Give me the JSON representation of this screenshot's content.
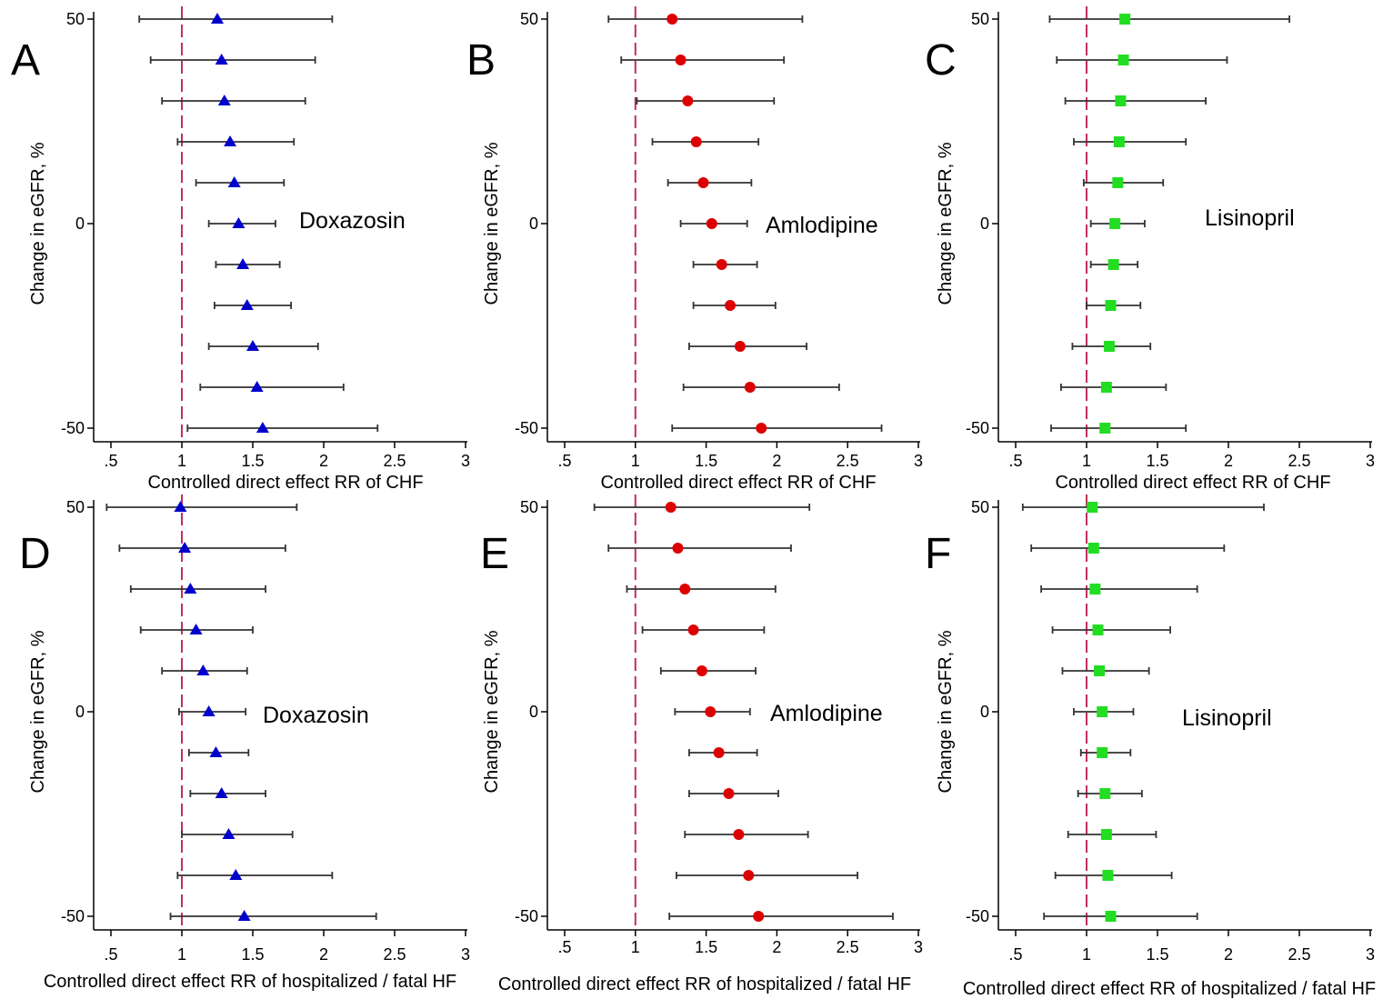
{
  "y_ticks": [
    {
      "value": 50,
      "label": "50"
    },
    {
      "value": 0,
      "label": "0"
    },
    {
      "value": -50,
      "label": "-50"
    }
  ],
  "x_ticks": [
    {
      "value": 0.5,
      "label": ".5"
    },
    {
      "value": 1,
      "label": "1"
    },
    {
      "value": 1.5,
      "label": "1.5"
    },
    {
      "value": 2,
      "label": "2"
    },
    {
      "value": 2.5,
      "label": "2.5"
    },
    {
      "value": 3,
      "label": "3"
    }
  ],
  "colors": {
    "doxazosin": "#0000cc",
    "amlodipine": "#dd0000",
    "lisinopril": "#22dd22",
    "reference_line": "#c0305a",
    "error_bar": "#333333",
    "axis": "#000000"
  },
  "chart_data": [
    {
      "panel": "A",
      "label": "Doxazosin",
      "marker": "triangle",
      "color": "#0000cc",
      "type": "forest",
      "xlabel": "Controlled direct effect RR of CHF",
      "ylabel": "Change in eGFR, %",
      "xlim": [
        0.5,
        3
      ],
      "ylim": [
        -50,
        50
      ],
      "reference_x": 1,
      "points": [
        {
          "y": 50,
          "rr": 1.25,
          "lo": 0.7,
          "hi": 2.06
        },
        {
          "y": 40,
          "rr": 1.28,
          "lo": 0.78,
          "hi": 1.94
        },
        {
          "y": 30,
          "rr": 1.3,
          "lo": 0.86,
          "hi": 1.87
        },
        {
          "y": 20,
          "rr": 1.34,
          "lo": 0.97,
          "hi": 1.79
        },
        {
          "y": 10,
          "rr": 1.37,
          "lo": 1.1,
          "hi": 1.72
        },
        {
          "y": 0,
          "rr": 1.4,
          "lo": 1.19,
          "hi": 1.66
        },
        {
          "y": -10,
          "rr": 1.43,
          "lo": 1.24,
          "hi": 1.69
        },
        {
          "y": -20,
          "rr": 1.46,
          "lo": 1.23,
          "hi": 1.77
        },
        {
          "y": -30,
          "rr": 1.5,
          "lo": 1.19,
          "hi": 1.96
        },
        {
          "y": -40,
          "rr": 1.53,
          "lo": 1.13,
          "hi": 2.14
        },
        {
          "y": -50,
          "rr": 1.57,
          "lo": 1.04,
          "hi": 2.38
        }
      ]
    },
    {
      "panel": "B",
      "label": "Amlodipine",
      "marker": "circle",
      "color": "#dd0000",
      "type": "forest",
      "xlabel": "Controlled direct effect RR of CHF",
      "ylabel": "Change in eGFR, %",
      "xlim": [
        0.5,
        3
      ],
      "ylim": [
        -50,
        50
      ],
      "reference_x": 1,
      "points": [
        {
          "y": 50,
          "rr": 1.26,
          "lo": 0.81,
          "hi": 2.18
        },
        {
          "y": 40,
          "rr": 1.32,
          "lo": 0.9,
          "hi": 2.05
        },
        {
          "y": 30,
          "rr": 1.37,
          "lo": 1.01,
          "hi": 1.98
        },
        {
          "y": 20,
          "rr": 1.43,
          "lo": 1.12,
          "hi": 1.87
        },
        {
          "y": 10,
          "rr": 1.48,
          "lo": 1.23,
          "hi": 1.82
        },
        {
          "y": 0,
          "rr": 1.54,
          "lo": 1.32,
          "hi": 1.79
        },
        {
          "y": -10,
          "rr": 1.61,
          "lo": 1.41,
          "hi": 1.86
        },
        {
          "y": -20,
          "rr": 1.67,
          "lo": 1.41,
          "hi": 1.99
        },
        {
          "y": -30,
          "rr": 1.74,
          "lo": 1.38,
          "hi": 2.21
        },
        {
          "y": -40,
          "rr": 1.81,
          "lo": 1.34,
          "hi": 2.44
        },
        {
          "y": -50,
          "rr": 1.89,
          "lo": 1.26,
          "hi": 2.74
        }
      ]
    },
    {
      "panel": "C",
      "label": "Lisinopril",
      "marker": "square",
      "color": "#22dd22",
      "type": "forest",
      "xlabel": "Controlled direct effect RR of CHF",
      "ylabel": "Change in eGFR, %",
      "xlim": [
        0.5,
        3
      ],
      "ylim": [
        -50,
        50
      ],
      "reference_x": 1,
      "points": [
        {
          "y": 50,
          "rr": 1.27,
          "lo": 0.74,
          "hi": 2.43
        },
        {
          "y": 40,
          "rr": 1.26,
          "lo": 0.79,
          "hi": 1.99
        },
        {
          "y": 30,
          "rr": 1.24,
          "lo": 0.85,
          "hi": 1.84
        },
        {
          "y": 20,
          "rr": 1.23,
          "lo": 0.91,
          "hi": 1.7
        },
        {
          "y": 10,
          "rr": 1.22,
          "lo": 0.98,
          "hi": 1.54
        },
        {
          "y": 0,
          "rr": 1.2,
          "lo": 1.03,
          "hi": 1.41
        },
        {
          "y": -10,
          "rr": 1.19,
          "lo": 1.03,
          "hi": 1.36
        },
        {
          "y": -20,
          "rr": 1.17,
          "lo": 1.0,
          "hi": 1.38
        },
        {
          "y": -30,
          "rr": 1.16,
          "lo": 0.9,
          "hi": 1.45
        },
        {
          "y": -40,
          "rr": 1.14,
          "lo": 0.82,
          "hi": 1.56
        },
        {
          "y": -50,
          "rr": 1.13,
          "lo": 0.75,
          "hi": 1.7
        }
      ]
    },
    {
      "panel": "D",
      "label": "Doxazosin",
      "marker": "triangle",
      "color": "#0000cc",
      "type": "forest",
      "xlabel": "Controlled direct effect RR of hospitalized / fatal HF",
      "ylabel": "Change in eGFR, %",
      "xlim": [
        0.5,
        3
      ],
      "ylim": [
        -50,
        50
      ],
      "reference_x": 1,
      "points": [
        {
          "y": 50,
          "rr": 0.99,
          "lo": 0.47,
          "hi": 1.81
        },
        {
          "y": 40,
          "rr": 1.02,
          "lo": 0.56,
          "hi": 1.73
        },
        {
          "y": 30,
          "rr": 1.06,
          "lo": 0.64,
          "hi": 1.59
        },
        {
          "y": 20,
          "rr": 1.1,
          "lo": 0.71,
          "hi": 1.5
        },
        {
          "y": 10,
          "rr": 1.15,
          "lo": 0.86,
          "hi": 1.46
        },
        {
          "y": 0,
          "rr": 1.19,
          "lo": 0.98,
          "hi": 1.45
        },
        {
          "y": -10,
          "rr": 1.24,
          "lo": 1.05,
          "hi": 1.47
        },
        {
          "y": -20,
          "rr": 1.28,
          "lo": 1.06,
          "hi": 1.59
        },
        {
          "y": -30,
          "rr": 1.33,
          "lo": 1.0,
          "hi": 1.78
        },
        {
          "y": -40,
          "rr": 1.38,
          "lo": 0.97,
          "hi": 2.06
        },
        {
          "y": -50,
          "rr": 1.44,
          "lo": 0.92,
          "hi": 2.37
        }
      ]
    },
    {
      "panel": "E",
      "label": "Amlodipine",
      "marker": "circle",
      "color": "#dd0000",
      "type": "forest",
      "xlabel": "Controlled direct effect RR of hospitalized / fatal HF",
      "ylabel": "Change in eGFR, %",
      "xlim": [
        0.5,
        3
      ],
      "ylim": [
        -50,
        50
      ],
      "reference_x": 1,
      "points": [
        {
          "y": 50,
          "rr": 1.25,
          "lo": 0.71,
          "hi": 2.23
        },
        {
          "y": 40,
          "rr": 1.3,
          "lo": 0.81,
          "hi": 2.1
        },
        {
          "y": 30,
          "rr": 1.35,
          "lo": 0.94,
          "hi": 1.99
        },
        {
          "y": 20,
          "rr": 1.41,
          "lo": 1.05,
          "hi": 1.91
        },
        {
          "y": 10,
          "rr": 1.47,
          "lo": 1.18,
          "hi": 1.85
        },
        {
          "y": 0,
          "rr": 1.53,
          "lo": 1.28,
          "hi": 1.81
        },
        {
          "y": -10,
          "rr": 1.59,
          "lo": 1.38,
          "hi": 1.86
        },
        {
          "y": -20,
          "rr": 1.66,
          "lo": 1.38,
          "hi": 2.01
        },
        {
          "y": -30,
          "rr": 1.73,
          "lo": 1.35,
          "hi": 2.22
        },
        {
          "y": -40,
          "rr": 1.8,
          "lo": 1.29,
          "hi": 2.57
        },
        {
          "y": -50,
          "rr": 1.87,
          "lo": 1.24,
          "hi": 2.82
        }
      ]
    },
    {
      "panel": "F",
      "label": "Lisinopril",
      "marker": "square",
      "color": "#22dd22",
      "type": "forest",
      "xlabel": "Controlled direct effect RR of hospitalized / fatal HF",
      "ylabel": "Change in eGFR, %",
      "xlim": [
        0.5,
        3
      ],
      "ylim": [
        -50,
        50
      ],
      "reference_x": 1,
      "points": [
        {
          "y": 50,
          "rr": 1.04,
          "lo": 0.55,
          "hi": 2.25
        },
        {
          "y": 40,
          "rr": 1.05,
          "lo": 0.61,
          "hi": 1.97
        },
        {
          "y": 30,
          "rr": 1.06,
          "lo": 0.68,
          "hi": 1.78
        },
        {
          "y": 20,
          "rr": 1.08,
          "lo": 0.76,
          "hi": 1.59
        },
        {
          "y": 10,
          "rr": 1.09,
          "lo": 0.83,
          "hi": 1.44
        },
        {
          "y": 0,
          "rr": 1.11,
          "lo": 0.91,
          "hi": 1.33
        },
        {
          "y": -10,
          "rr": 1.11,
          "lo": 0.96,
          "hi": 1.31
        },
        {
          "y": -20,
          "rr": 1.13,
          "lo": 0.94,
          "hi": 1.39
        },
        {
          "y": -30,
          "rr": 1.14,
          "lo": 0.87,
          "hi": 1.49
        },
        {
          "y": -40,
          "rr": 1.15,
          "lo": 0.78,
          "hi": 1.6
        },
        {
          "y": -50,
          "rr": 1.17,
          "lo": 0.7,
          "hi": 1.78
        }
      ]
    }
  ]
}
